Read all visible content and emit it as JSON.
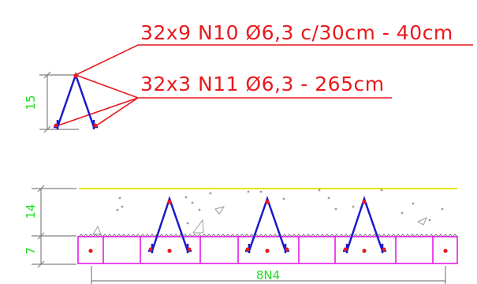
{
  "annotations": {
    "rebar_n10": "32x9 N10 Ø6,3 c/30cm - 40cm",
    "rebar_n11": "32x3 N11 Ø6,3 - 265cm"
  },
  "detail": {
    "height_dimension": "15"
  },
  "section": {
    "topping_dimension": "14",
    "beam_dimension": "7",
    "beam_label": "8N4"
  },
  "colors": {
    "annotation": "#e8191c",
    "dimension_text": "#22dd22",
    "dimension_line": "#808080",
    "stirrup": "#1a1acc",
    "bar_dot": "#e8191c",
    "beam_outline": "#e619e6",
    "slab_top": "#e6e600",
    "concrete_hatch": "#9a9a9a"
  }
}
